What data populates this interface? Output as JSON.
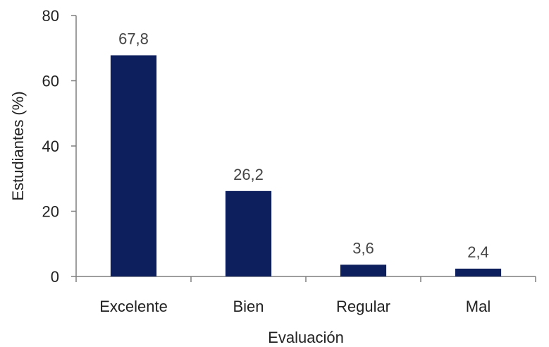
{
  "chart_data": {
    "type": "bar",
    "title": "",
    "xlabel": "Evaluación",
    "ylabel": "Estudiantes (%)",
    "categories": [
      "Excelente",
      "Bien",
      "Regular",
      "Mal"
    ],
    "values": [
      67.8,
      26.2,
      3.6,
      2.4
    ],
    "value_labels": [
      "67,8",
      "26,2",
      "3,6",
      "2,4"
    ],
    "ylim": [
      0,
      80
    ],
    "yticks": [
      0,
      20,
      40,
      60,
      80
    ],
    "ytick_labels": [
      "0",
      "20",
      "40",
      "60",
      "80"
    ],
    "grid": false,
    "legend": "none",
    "bar_color": "#0d1f5c"
  }
}
